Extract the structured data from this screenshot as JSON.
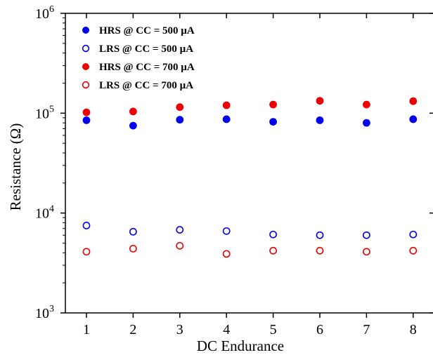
{
  "chart_data": {
    "type": "scatter",
    "title": "",
    "xlabel": "DC Endurance",
    "ylabel": "Resistance (Ω)",
    "xlim": [
      0.5,
      8.5
    ],
    "ylim": [
      1000,
      1000000
    ],
    "yscale": "log",
    "x_ticks": [
      "1",
      "2",
      "3",
      "4",
      "5",
      "6",
      "7",
      "8"
    ],
    "y_ticks": [
      {
        "base": "10",
        "exp": "3"
      },
      {
        "base": "10",
        "exp": "4"
      },
      {
        "base": "10",
        "exp": "5"
      },
      {
        "base": "10",
        "exp": "6"
      }
    ],
    "x": [
      1,
      2,
      3,
      4,
      5,
      6,
      7,
      8
    ],
    "legend_position": "top-left",
    "series": [
      {
        "name": "HRS @ CC = 500 µA",
        "color": "#0000ee",
        "marker": "filled-circle",
        "values": [
          85000,
          75000,
          86000,
          87000,
          82000,
          85000,
          80000,
          87000
        ]
      },
      {
        "name": "LRS @ CC = 500 µA",
        "color": "#0000ee",
        "marker": "open-circle",
        "values": [
          7500,
          6500,
          6800,
          6600,
          6100,
          6000,
          6000,
          6100
        ]
      },
      {
        "name": "HRS @ CC = 700 µA",
        "color": "#ee0000",
        "marker": "filled-circle",
        "values": [
          102000,
          104000,
          115000,
          120000,
          122000,
          133000,
          122000,
          132000
        ]
      },
      {
        "name": "LRS @ CC = 700 µA",
        "color": "#ee0000",
        "marker": "open-circle",
        "values": [
          4100,
          4400,
          4700,
          3900,
          4200,
          4200,
          4100,
          4200
        ]
      }
    ]
  }
}
